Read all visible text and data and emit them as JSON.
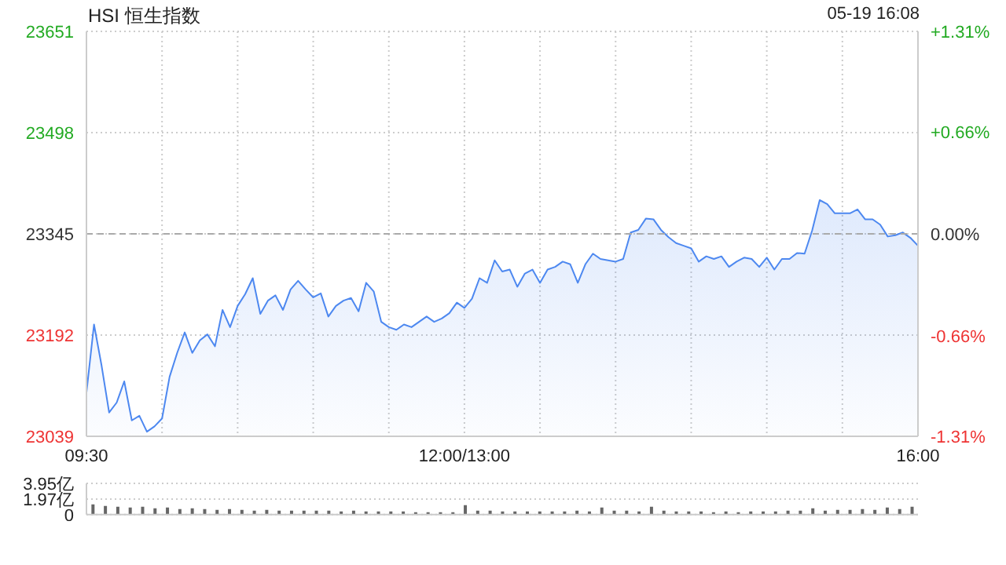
{
  "chart_data": [
    {
      "type": "area",
      "title": "HSI 恒生指数",
      "subtitle": "05-19 16:08",
      "categories": [
        "09:30",
        null,
        null,
        null,
        null,
        null,
        null,
        null,
        null,
        null,
        null,
        null,
        null,
        null,
        null,
        null,
        null,
        null,
        null,
        null,
        null,
        null,
        null,
        null,
        null,
        null,
        null,
        null,
        null,
        null,
        null,
        null,
        null,
        null,
        null,
        null,
        null,
        null,
        null,
        null,
        null,
        null,
        null,
        null,
        null,
        null,
        null,
        null,
        null,
        null,
        "12:00/13:00",
        null,
        null,
        null,
        null,
        null,
        null,
        null,
        null,
        null,
        null,
        null,
        null,
        null,
        null,
        null,
        null,
        null,
        null,
        null,
        null,
        null,
        null,
        null,
        null,
        null,
        null,
        null,
        null,
        null,
        null,
        null,
        null,
        null,
        null,
        null,
        null,
        null,
        null,
        null,
        null,
        null,
        null,
        null,
        null,
        null,
        null,
        null,
        null,
        null,
        null,
        null,
        null,
        null,
        null,
        null,
        null,
        null,
        null,
        null,
        "16:00"
      ],
      "series": [
        {
          "color": "#4d88f0",
          "values": [
            23105,
            23208,
            23146,
            23075,
            23090,
            23122,
            23063,
            23070,
            23046,
            23054,
            23066,
            23129,
            23165,
            23196,
            23165,
            23184,
            23193,
            23175,
            23230,
            23204,
            23236,
            23254,
            23278,
            23224,
            23244,
            23252,
            23230,
            23261,
            23274,
            23261,
            23249,
            23255,
            23220,
            23236,
            23244,
            23248,
            23228,
            23271,
            23258,
            23212,
            23204,
            23200,
            23208,
            23204,
            23212,
            23220,
            23212,
            23217,
            23225,
            23241,
            23233,
            23247,
            23278,
            23271,
            23305,
            23288,
            23291,
            23265,
            23285,
            23291,
            23271,
            23291,
            23295,
            23303,
            23299,
            23271,
            23299,
            23315,
            23307,
            23305,
            23303,
            23307,
            23347,
            23351,
            23368,
            23367,
            23351,
            23340,
            23331,
            23327,
            23323,
            23303,
            23311,
            23307,
            23311,
            23295,
            23303,
            23309,
            23307,
            23295,
            23309,
            23291,
            23307,
            23307,
            23316,
            23315,
            23350,
            23396,
            23390,
            23376,
            23376,
            23376,
            23382,
            23367,
            23367,
            23359,
            23341,
            23343,
            23347,
            23339,
            23327
          ]
        }
      ],
      "ylim": [
        23039,
        23651
      ],
      "yticks": [
        23039,
        23192,
        23345,
        23498,
        23651
      ],
      "y2lim": [
        -1.31,
        1.31
      ],
      "y2ticks": [
        {
          "value": -1.31,
          "label": "-1.31%"
        },
        {
          "value": -0.66,
          "label": "-0.66%"
        },
        {
          "value": 0,
          "label": "0.00%"
        },
        {
          "value": 0.66,
          "label": "+0.66%"
        },
        {
          "value": 1.31,
          "label": "+1.31%"
        }
      ],
      "ref_lines": [
        {
          "axis": "y",
          "value": 23345,
          "color": "#aaaaaa",
          "line_style": "dashed"
        }
      ],
      "grid": true,
      "marker": "none"
    },
    {
      "type": "bar",
      "categories": [
        null,
        null,
        null,
        null,
        null,
        null,
        null,
        null,
        null,
        null,
        null,
        null,
        null,
        null,
        null,
        null,
        null,
        null,
        null,
        null,
        null,
        null,
        null,
        null,
        null,
        null,
        null,
        null,
        null,
        null,
        null,
        null,
        null,
        null,
        null,
        null,
        null,
        null,
        null,
        null,
        null,
        null,
        null,
        null,
        null,
        null,
        null,
        null,
        null,
        null,
        null,
        null,
        null,
        null,
        null,
        null,
        null,
        null,
        null,
        null,
        null,
        null,
        null,
        null,
        null,
        null,
        null
      ],
      "values": [
        1.3,
        1.1,
        1.0,
        0.9,
        1.0,
        0.8,
        0.9,
        0.7,
        0.8,
        0.7,
        0.6,
        0.7,
        0.6,
        0.5,
        0.6,
        0.5,
        0.5,
        0.5,
        0.5,
        0.5,
        0.4,
        0.5,
        0.4,
        0.4,
        0.4,
        0.4,
        0.3,
        0.3,
        0.3,
        0.3,
        1.2,
        0.5,
        0.5,
        0.4,
        0.4,
        0.4,
        0.4,
        0.4,
        0.4,
        0.5,
        0.4,
        0.9,
        0.5,
        0.5,
        0.4,
        1.0,
        0.5,
        0.4,
        0.4,
        0.4,
        0.3,
        0.4,
        0.3,
        0.4,
        0.4,
        0.4,
        0.5,
        0.5,
        0.8,
        0.5,
        0.6,
        0.6,
        0.7,
        0.6,
        0.9,
        0.7,
        1.0
      ],
      "color": "#666666",
      "ylim": [
        0,
        3.95
      ],
      "yticks": [
        0,
        {
          "value": 1.97,
          "label": "1.97亿"
        },
        {
          "value": 3.95,
          "label": "3.95亿"
        }
      ],
      "grid": "y",
      "tick_labels": "y"
    }
  ]
}
